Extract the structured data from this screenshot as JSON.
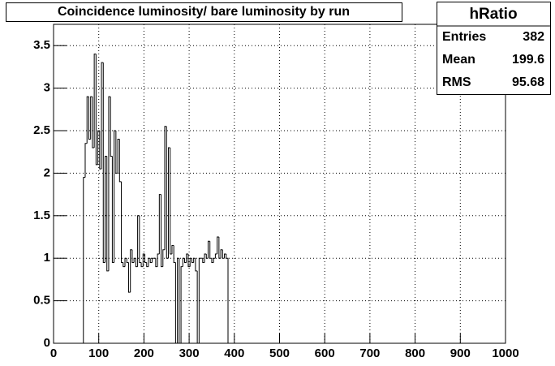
{
  "chart_data": {
    "type": "histogram",
    "title": "Coincidence luminosity/ bare luminosity by run",
    "bins": [
      66,
      70,
      74,
      78,
      82,
      86,
      90,
      94,
      98,
      102,
      106,
      110,
      114,
      118,
      122,
      126,
      130,
      134,
      138,
      142,
      146,
      150,
      154,
      158,
      162,
      166,
      170,
      174,
      178,
      182,
      186,
      190,
      194,
      198,
      202,
      206,
      210,
      214,
      218,
      222,
      226,
      230,
      234,
      238,
      242,
      246,
      250,
      254,
      258,
      262,
      266,
      270,
      274,
      278,
      282,
      286,
      290,
      294,
      298,
      302,
      306,
      310,
      314,
      318,
      322,
      326,
      330,
      334,
      338,
      342,
      346,
      350,
      354,
      358,
      362,
      366,
      370,
      374,
      378,
      382,
      386
    ],
    "values": [
      1.95,
      2.35,
      2.9,
      2.4,
      2.9,
      2.3,
      3.4,
      2.1,
      2.5,
      2.05,
      3.3,
      0.95,
      2.2,
      0.85,
      2.9,
      2.2,
      0.95,
      2.5,
      2.0,
      2.4,
      1.9,
      0.95,
      0.9,
      1.0,
      0.95,
      0.6,
      1.1,
      0.95,
      1.0,
      0.9,
      1.5,
      0.95,
      0.9,
      1.05,
      0.95,
      0.9,
      1.0,
      0.95,
      1.0,
      1.0,
      0.9,
      1.05,
      1.75,
      0.9,
      1.1,
      2.55,
      1.0,
      2.3,
      1.05,
      1.15,
      0.95,
      0.0,
      1.0,
      0.0,
      0.9,
      1.0,
      0.95,
      1.05,
      0.9,
      1.0,
      0.95,
      1.0,
      0.85,
      0.0,
      1.0,
      1.0,
      0.95,
      1.05,
      1.0,
      1.2,
      1.0,
      0.95,
      1.0,
      1.05,
      1.25,
      1.0,
      1.1,
      1.0,
      1.05,
      1.0
    ],
    "color": "#000000",
    "xlim": [
      0,
      1000
    ],
    "xticks": [
      0,
      100,
      200,
      300,
      400,
      500,
      600,
      700,
      800,
      900,
      1000
    ],
    "ylim": [
      0,
      3.75
    ],
    "yticks": [
      0,
      0.5,
      1,
      1.5,
      2,
      2.5,
      3,
      3.5
    ],
    "grid": true,
    "stats": {
      "name": "hRatio",
      "rows": [
        {
          "label": "Entries",
          "value": 382
        },
        {
          "label": "Mean",
          "value": 199.6
        },
        {
          "label": "RMS",
          "value": 95.68
        }
      ]
    }
  }
}
